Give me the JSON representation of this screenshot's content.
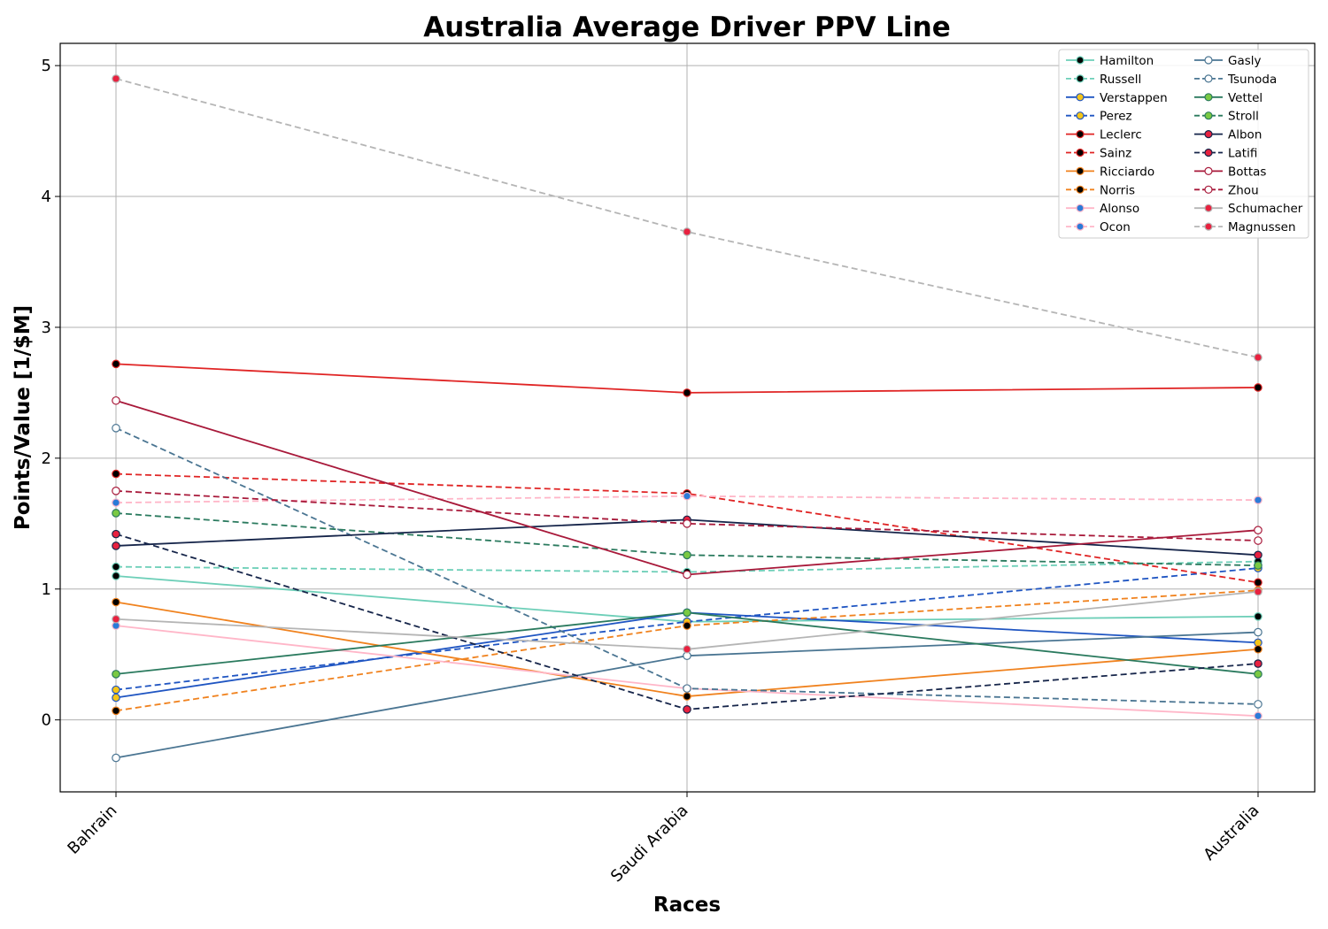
{
  "chart_data": {
    "type": "line",
    "title": "Australia Average Driver PPV Line",
    "xlabel": "Races",
    "ylabel": "Points/Value [1/$M]",
    "categories": [
      "Bahrain",
      "Saudi Arabia",
      "Australia"
    ],
    "ylim": [
      -0.55,
      5.17
    ],
    "yticks": [
      0,
      1,
      2,
      3,
      4,
      5
    ],
    "grid": true,
    "legend_position": "top-right",
    "series": [
      {
        "name": "Hamilton",
        "values": [
          1.1,
          0.75,
          0.79
        ],
        "color": "#6dcfb8",
        "dash": false,
        "marker_fill": "#000000"
      },
      {
        "name": "Russell",
        "values": [
          1.17,
          1.13,
          1.21
        ],
        "color": "#6dcfb8",
        "dash": true,
        "marker_fill": "#000000"
      },
      {
        "name": "Verstappen",
        "values": [
          0.17,
          0.82,
          0.59
        ],
        "color": "#1f55c2",
        "dash": false,
        "marker_fill": "#f5c518"
      },
      {
        "name": "Perez",
        "values": [
          0.23,
          0.75,
          1.16
        ],
        "color": "#1f55c2",
        "dash": true,
        "marker_fill": "#f5c518"
      },
      {
        "name": "Leclerc",
        "values": [
          2.72,
          2.5,
          2.54
        ],
        "color": "#e02424",
        "dash": false,
        "marker_fill": "#000000"
      },
      {
        "name": "Sainz",
        "values": [
          1.88,
          1.73,
          1.05
        ],
        "color": "#e02424",
        "dash": true,
        "marker_fill": "#000000"
      },
      {
        "name": "Ricciardo",
        "values": [
          0.9,
          0.18,
          0.54
        ],
        "color": "#f0821e",
        "dash": false,
        "marker_fill": "#000000"
      },
      {
        "name": "Norris",
        "values": [
          0.07,
          0.72,
          0.99
        ],
        "color": "#f0821e",
        "dash": true,
        "marker_fill": "#000000"
      },
      {
        "name": "Alonso",
        "values": [
          0.72,
          0.24,
          0.03
        ],
        "color": "#ffb6c8",
        "dash": false,
        "marker_fill": "#2b7bd8"
      },
      {
        "name": "Ocon",
        "values": [
          1.66,
          1.71,
          1.68
        ],
        "color": "#ffb6c8",
        "dash": true,
        "marker_fill": "#2b7bd8"
      },
      {
        "name": "Gasly",
        "values": [
          -0.29,
          0.49,
          0.67
        ],
        "color": "#4a7592",
        "dash": false,
        "marker_fill": "#ffffff"
      },
      {
        "name": "Tsunoda",
        "values": [
          2.23,
          0.24,
          0.12
        ],
        "color": "#4a7592",
        "dash": true,
        "marker_fill": "#ffffff"
      },
      {
        "name": "Vettel",
        "values": [
          0.35,
          0.82,
          0.35
        ],
        "color": "#2a7a5e",
        "dash": false,
        "marker_fill": "#7ac943"
      },
      {
        "name": "Stroll",
        "values": [
          1.58,
          1.26,
          1.18
        ],
        "color": "#2a7a5e",
        "dash": true,
        "marker_fill": "#7ac943"
      },
      {
        "name": "Albon",
        "values": [
          1.33,
          1.53,
          1.26
        ],
        "color": "#16254a",
        "dash": false,
        "marker_fill": "#e8213f"
      },
      {
        "name": "Latifi",
        "values": [
          1.42,
          0.08,
          0.43
        ],
        "color": "#16254a",
        "dash": true,
        "marker_fill": "#e8213f"
      },
      {
        "name": "Bottas",
        "values": [
          2.44,
          1.11,
          1.45
        ],
        "color": "#a8193a",
        "dash": false,
        "marker_fill": "#ffffff"
      },
      {
        "name": "Zhou",
        "values": [
          1.75,
          1.5,
          1.37
        ],
        "color": "#a8193a",
        "dash": true,
        "marker_fill": "#ffffff"
      },
      {
        "name": "Schumacher",
        "values": [
          0.77,
          0.54,
          0.98
        ],
        "color": "#b5b5b5",
        "dash": false,
        "marker_fill": "#e8213f"
      },
      {
        "name": "Magnussen",
        "values": [
          4.9,
          3.73,
          2.77
        ],
        "color": "#b5b5b5",
        "dash": true,
        "marker_fill": "#e8213f"
      }
    ]
  }
}
